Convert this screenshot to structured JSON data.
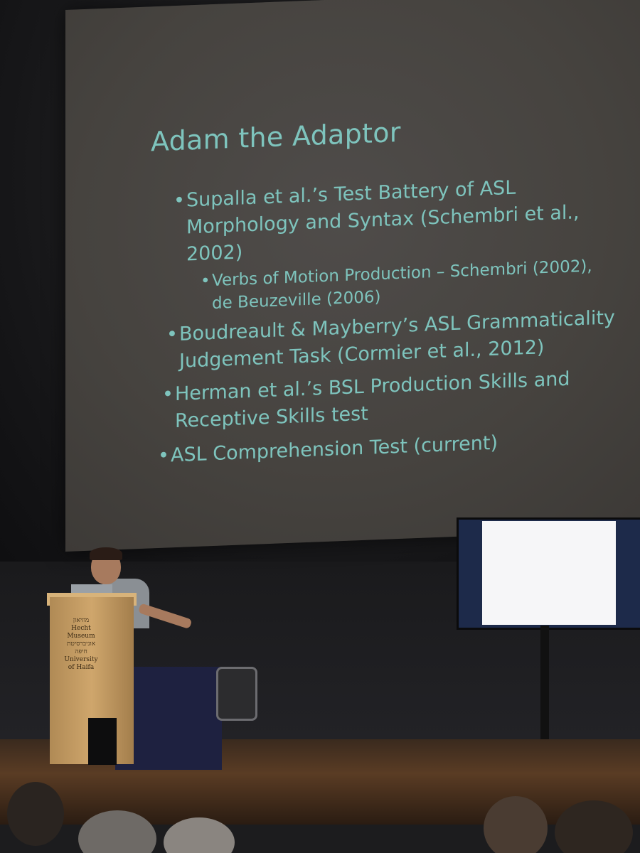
{
  "slide": {
    "title": "Adam the Adaptor",
    "bullets": [
      {
        "lines": [
          "Supalla et al.’s Test Battery of ASL",
          "Morphology and Syntax (Schembri et al.,",
          "2002)"
        ]
      },
      {
        "sub": true,
        "lines": [
          "Verbs of Motion Production – Schembri (2002),",
          "de Beuzeville (2006)"
        ]
      },
      {
        "lines": [
          "Boudreault & Mayberry’s ASL Grammaticality",
          "Judgement Task (Cormier et al., 2012)"
        ]
      },
      {
        "lines": [
          "Herman et al.’s BSL Production Skills and",
          "Receptive Skills test"
        ]
      },
      {
        "lines": [
          "ASL Comprehension Test (current)"
        ]
      }
    ]
  },
  "lectern": {
    "logo_lines": [
      "מוזיאון",
      "Hecht Museum",
      "אוניברסיטת חיפה",
      "University",
      "of Haifa"
    ]
  },
  "colors": {
    "slide_text": "#7ec4bd",
    "slide_bg": "#46433f"
  }
}
